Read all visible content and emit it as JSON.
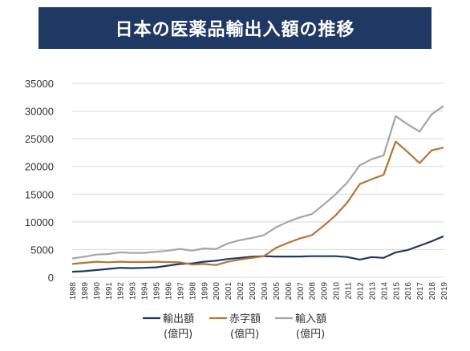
{
  "title": "日本の医薬品輸出入額の推移",
  "chart_data": {
    "type": "line",
    "title": "日本の医薬品輸出入額の推移",
    "x": [
      "1988",
      "1989",
      "1990",
      "1991",
      "1992",
      "1993",
      "1994",
      "1995",
      "1996",
      "1997",
      "1998",
      "1999",
      "2000",
      "2001",
      "2002",
      "2003",
      "2004",
      "2005",
      "2006",
      "2007",
      "2008",
      "2009",
      "2010",
      "2011",
      "2012",
      "2013",
      "2014",
      "2015",
      "2016",
      "2017",
      "2018",
      "2019"
    ],
    "ylim": [
      0,
      35000
    ],
    "yticks": [
      0,
      5000,
      10000,
      15000,
      20000,
      25000,
      30000,
      35000
    ],
    "grid": true,
    "legend_position": "bottom",
    "series": [
      {
        "name": "輸出額",
        "unit": "(億円)",
        "color": "#1f3864",
        "values": [
          1000,
          1100,
          1300,
          1500,
          1700,
          1650,
          1700,
          1800,
          2100,
          2400,
          2500,
          2800,
          3000,
          3300,
          3500,
          3700,
          3800,
          3750,
          3750,
          3750,
          3800,
          3800,
          3800,
          3650,
          3200,
          3650,
          3500,
          4500,
          4900,
          5700,
          6500,
          7400
        ]
      },
      {
        "name": "赤字額",
        "unit": "(億円)",
        "color": "#b87333",
        "values": [
          2400,
          2600,
          2800,
          2700,
          2800,
          2750,
          2750,
          2800,
          2750,
          2700,
          2300,
          2400,
          2200,
          2800,
          3200,
          3500,
          3800,
          5300,
          6200,
          7000,
          7600,
          9300,
          11200,
          13600,
          16800,
          17700,
          18500,
          24500,
          22600,
          20600,
          22900,
          23400
        ]
      },
      {
        "name": "輸入額",
        "unit": "(億円)",
        "color": "#a5a5a5",
        "values": [
          3400,
          3700,
          4100,
          4200,
          4500,
          4400,
          4400,
          4600,
          4800,
          5100,
          4800,
          5200,
          5100,
          6100,
          6700,
          7100,
          7600,
          9000,
          10000,
          10800,
          11400,
          13100,
          15000,
          17200,
          20200,
          21300,
          22000,
          29100,
          27600,
          26300,
          29400,
          30900
        ]
      }
    ]
  }
}
